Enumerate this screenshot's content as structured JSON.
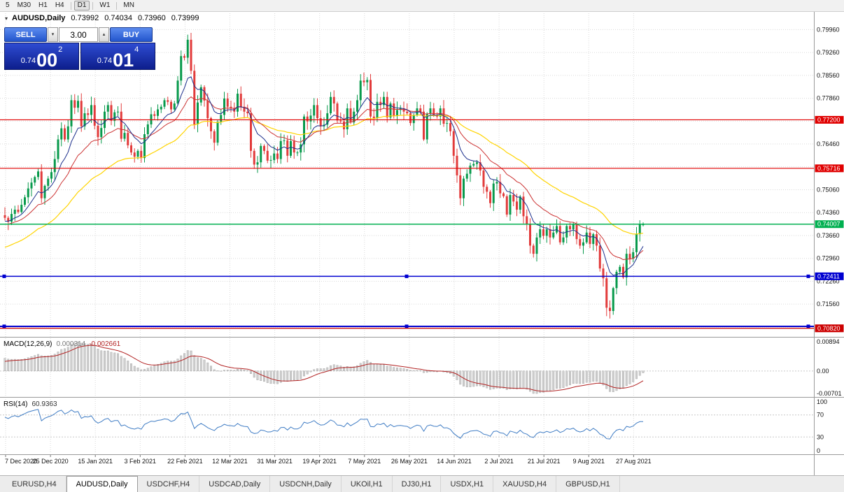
{
  "toolbar": {
    "groups": [
      [
        "5",
        "M30",
        "H1",
        "H4"
      ],
      [
        "D1"
      ],
      [
        "W1"
      ],
      [
        "MN"
      ]
    ],
    "active": "D1"
  },
  "icons": {
    "header_marker": "▾",
    "volume_down": "▾",
    "volume_up": "▴"
  },
  "chart": {
    "symbol_header": {
      "symbol": "AUDUSD,Daily",
      "open": "0.73992",
      "high": "0.74034",
      "low": "0.73960",
      "close": "0.73999"
    },
    "one_click": {
      "sell_label": "SELL",
      "buy_label": "BUY",
      "volume": "3.00",
      "sell_price_prefix": "0.74",
      "sell_price_big": "00",
      "sell_price_pip": "2",
      "buy_price_prefix": "0.74",
      "buy_price_big": "01",
      "buy_price_pip": "4"
    },
    "y_axis": {
      "ticks": [
        {
          "v": 0.7996,
          "t": "0.79960"
        },
        {
          "v": 0.7926,
          "t": "0.79260"
        },
        {
          "v": 0.7856,
          "t": "0.78560"
        },
        {
          "v": 0.7786,
          "t": "0.77860"
        },
        {
          "v": 0.7716,
          "t": ""
        },
        {
          "v": 0.7646,
          "t": "0.76460"
        },
        {
          "v": 0.7576,
          "t": ""
        },
        {
          "v": 0.7506,
          "t": "0.75060"
        },
        {
          "v": 0.7436,
          "t": "0.74360"
        },
        {
          "v": 0.7366,
          "t": "0.73660"
        },
        {
          "v": 0.7296,
          "t": "0.72960"
        },
        {
          "v": 0.7226,
          "t": "0.72260"
        },
        {
          "v": 0.7156,
          "t": "0.71560"
        },
        {
          "v": 0.7086,
          "t": ""
        }
      ]
    },
    "x_axis": {
      "labels": [
        "7 Dec 2020",
        "25 Dec 2020",
        "15 Jan 2021",
        "3 Feb 2021",
        "22 Feb 2021",
        "12 Mar 2021",
        "31 Mar 2021",
        "19 Apr 2021",
        "7 May 2021",
        "26 May 2021",
        "14 Jun 2021",
        "2 Jul 2021",
        "21 Jul 2021",
        "9 Aug 2021",
        "27 Aug 2021"
      ]
    }
  },
  "chart_data": {
    "type": "candlestick",
    "symbol": "AUDUSD",
    "timeframe": "Daily",
    "ohlc_current": {
      "open": 0.73992,
      "high": 0.74034,
      "low": 0.7396,
      "close": 0.73999
    },
    "price_range": [
      0.7058,
      0.8046
    ],
    "open_first": 0.7428,
    "closes": [
      0.742,
      0.7408,
      0.7432,
      0.7445,
      0.7438,
      0.746,
      0.7483,
      0.751,
      0.7528,
      0.7545,
      0.7562,
      0.748,
      0.7518,
      0.754,
      0.756,
      0.76,
      0.766,
      0.7694,
      0.766,
      0.77,
      0.778,
      0.7757,
      0.7778,
      0.77,
      0.774,
      0.7735,
      0.7765,
      0.7702,
      0.7667,
      0.7695,
      0.7745,
      0.7765,
      0.7717,
      0.7743,
      0.7745,
      0.7662,
      0.768,
      0.7642,
      0.762,
      0.7607,
      0.7625,
      0.7603,
      0.7676,
      0.7706,
      0.7737,
      0.7732,
      0.7752,
      0.776,
      0.778,
      0.7775,
      0.7752,
      0.777,
      0.784,
      0.7915,
      0.791,
      0.7965,
      0.787,
      0.7706,
      0.7773,
      0.782,
      0.7779,
      0.7725,
      0.7685,
      0.765,
      0.7714,
      0.7735,
      0.7785,
      0.776,
      0.7755,
      0.7745,
      0.78,
      0.776,
      0.7745,
      0.774,
      0.7625,
      0.7583,
      0.759,
      0.764,
      0.7625,
      0.7595,
      0.7597,
      0.7617,
      0.76,
      0.7655,
      0.7657,
      0.761,
      0.7655,
      0.762,
      0.762,
      0.7645,
      0.773,
      0.7715,
      0.7733,
      0.7765,
      0.7725,
      0.77,
      0.7705,
      0.774,
      0.779,
      0.777,
      0.7718,
      0.7715,
      0.7691,
      0.7755,
      0.7712,
      0.7745,
      0.778,
      0.784,
      0.7835,
      0.7842,
      0.773,
      0.7725,
      0.7775,
      0.7765,
      0.779,
      0.7727,
      0.777,
      0.7732,
      0.775,
      0.7755,
      0.7745,
      0.774,
      0.771,
      0.7735,
      0.7755,
      0.7745,
      0.766,
      0.7738,
      0.7755,
      0.7735,
      0.773,
      0.7755,
      0.7708,
      0.771,
      0.7685,
      0.761,
      0.755,
      0.748,
      0.754,
      0.7555,
      0.758,
      0.7585,
      0.759,
      0.7565,
      0.7515,
      0.75,
      0.7465,
      0.7525,
      0.753,
      0.7495,
      0.7486,
      0.743,
      0.749,
      0.747,
      0.7445,
      0.7485,
      0.7425,
      0.74,
      0.7335,
      0.731,
      0.736,
      0.7385,
      0.7365,
      0.7385,
      0.736,
      0.7375,
      0.7395,
      0.7345,
      0.736,
      0.7395,
      0.7385,
      0.74,
      0.7355,
      0.7335,
      0.7345,
      0.7375,
      0.734,
      0.737,
      0.7335,
      0.7265,
      0.7235,
      0.7145,
      0.7135,
      0.7205,
      0.7255,
      0.727,
      0.7238,
      0.731,
      0.7295,
      0.7315,
      0.737,
      0.73992,
      0.73999
    ],
    "hlines": [
      {
        "price": 0.772,
        "color": "#e00000",
        "width": 1.2,
        "badge": "0.77200"
      },
      {
        "price": 0.75716,
        "color": "#e00000",
        "width": 1.2,
        "badge": "0.75716"
      },
      {
        "price": 0.74007,
        "color": "#00b050",
        "width": 1.6,
        "badge": "0.74007"
      },
      {
        "price": 0.72411,
        "color": "#0000d0",
        "width": 1.6,
        "badge": "0.72411",
        "handles": true
      },
      {
        "price": 0.7088,
        "color": "#0000d0",
        "width": 2.0,
        "handles": true
      },
      {
        "price": 0.7082,
        "color": "#cc0000",
        "width": 1.2,
        "badge": "0.70820"
      }
    ],
    "moving_averages": [
      {
        "name": "fast",
        "type": "ema",
        "period": 9,
        "color": "#1c2f8c"
      },
      {
        "name": "medium",
        "type": "ema",
        "period": 20,
        "color": "#cc3333"
      },
      {
        "name": "slow",
        "type": "ema",
        "period": 45,
        "color": "#ffd400"
      }
    ],
    "macd": {
      "name": "MACD(12,26,9)",
      "fast": 12,
      "slow": 26,
      "signal": 9,
      "value": "0.000314",
      "signal_value": "-0.002661",
      "axis_max": "0.00894",
      "axis_zero": "0.00",
      "axis_min": "-0.00701",
      "hist_color": "#cfcfcf",
      "hist_stroke": "#a0a0a0",
      "signal_color": "#b22222"
    },
    "rsi": {
      "name": "RSI(14)",
      "period": 14,
      "value": "60.9363",
      "axis": [
        "100",
        "70",
        "30",
        "0"
      ],
      "levels": [
        70,
        30
      ],
      "color": "#3f7cc4"
    },
    "colors": {
      "up": "#089a4c",
      "down": "#e23b3b",
      "grid": "#dadada",
      "level_grid": "#c8c8c8",
      "axis_text": "#111111",
      "separator": "#9a9a9a",
      "background": "#ffffff"
    }
  },
  "tabs": {
    "items": [
      "EURUSD,H4",
      "AUDUSD,Daily",
      "USDCHF,H4",
      "USDCAD,Daily",
      "USDCNH,Daily",
      "UKOil,H1",
      "DJ30,H1",
      "USDX,H1",
      "XAUUSD,H4",
      "GBPUSD,H1"
    ],
    "active_index": 1
  }
}
